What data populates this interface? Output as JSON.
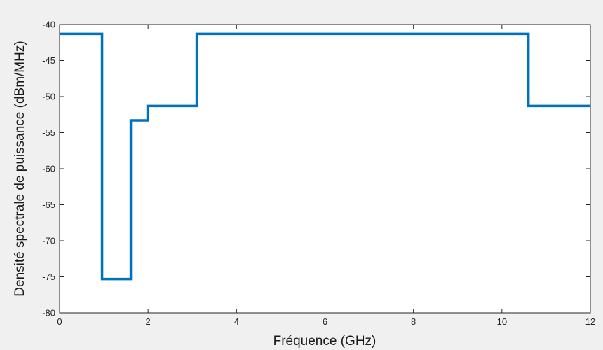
{
  "chart_data": {
    "type": "line",
    "title": "",
    "xlabel": "Fréquence (GHz)",
    "ylabel": "Densité spectrale de puissance (dBm/MHz)",
    "xlim": [
      0,
      12
    ],
    "ylim": [
      -80,
      -40
    ],
    "xticks": [
      0,
      2,
      4,
      6,
      8,
      10,
      12
    ],
    "yticks": [
      -80,
      -75,
      -70,
      -65,
      -60,
      -55,
      -50,
      -45,
      -40
    ],
    "grid": false,
    "line_color": "#0072BD",
    "series": [
      {
        "x": [
          0,
          0.96,
          0.96,
          1.61,
          1.61,
          1.99,
          1.99,
          3.1,
          3.1,
          10.6,
          10.6,
          12
        ],
        "y": [
          -41.3,
          -41.3,
          -75.3,
          -75.3,
          -53.3,
          -53.3,
          -51.3,
          -51.3,
          -41.3,
          -41.3,
          -51.3,
          -51.3
        ]
      }
    ]
  }
}
